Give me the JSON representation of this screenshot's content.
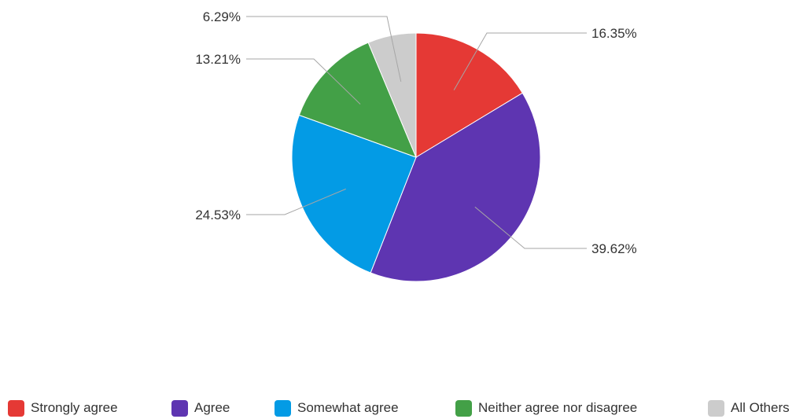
{
  "chart_data": {
    "type": "pie",
    "start_angle_deg": 0,
    "direction": "clockwise",
    "legend_position": "bottom",
    "slices": [
      {
        "name": "Strongly agree",
        "value": 16.35,
        "label": "16.35%",
        "color": "#e53935"
      },
      {
        "name": "Agree",
        "value": 39.62,
        "label": "39.62%",
        "color": "#5e35b1"
      },
      {
        "name": "Somewhat agree",
        "value": 24.53,
        "label": "24.53%",
        "color": "#039be5"
      },
      {
        "name": "Neither agree nor disagree",
        "value": 13.21,
        "label": "13.21%",
        "color": "#43a047"
      },
      {
        "name": "All Others",
        "value": 6.29,
        "label": "6.29%",
        "color": "#cccccc"
      }
    ]
  }
}
